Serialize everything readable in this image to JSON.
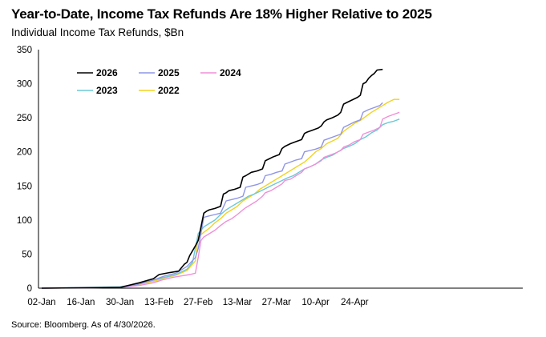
{
  "header": {
    "title": "Year-to-Date, Income Tax Refunds Are 18% Higher Relative to 2025",
    "subtitle": "Individual Income Tax Refunds, $Bn"
  },
  "footer": {
    "source": "Source: Bloomberg. As of 4/30/2026."
  },
  "chart_data": {
    "type": "line",
    "title": "Year-to-Date, Income Tax Refunds Are 18% Higher Relative to 2025",
    "subtitle": "Individual Income Tax Refunds, $Bn",
    "xlabel": "",
    "ylabel": "",
    "x_ticks": [
      "02-Jan",
      "16-Jan",
      "30-Jan",
      "13-Feb",
      "27-Feb",
      "13-Mar",
      "27-Mar",
      "10-Apr",
      "24-Apr"
    ],
    "xlim_days": [
      0,
      120
    ],
    "ylim": [
      0,
      350
    ],
    "y_ticks": [
      0,
      50,
      100,
      150,
      200,
      250,
      300,
      350
    ],
    "grid": false,
    "legend": "top-left",
    "series": [
      {
        "name": "2026",
        "color": "#000000",
        "points": [
          [
            0,
            0
          ],
          [
            28,
            1
          ],
          [
            35,
            8
          ],
          [
            40,
            14
          ],
          [
            42,
            20
          ],
          [
            46,
            23
          ],
          [
            49,
            25
          ],
          [
            51,
            35
          ],
          [
            52,
            38
          ],
          [
            53,
            48
          ],
          [
            54,
            55
          ],
          [
            55,
            62
          ],
          [
            56,
            70
          ],
          [
            58,
            110
          ],
          [
            59,
            113
          ],
          [
            60,
            115
          ],
          [
            62,
            117
          ],
          [
            64,
            120
          ],
          [
            65,
            138
          ],
          [
            66,
            140
          ],
          [
            67,
            143
          ],
          [
            69,
            145
          ],
          [
            71,
            148
          ],
          [
            72,
            163
          ],
          [
            73,
            165
          ],
          [
            75,
            170
          ],
          [
            77,
            172
          ],
          [
            79,
            175
          ],
          [
            80,
            187
          ],
          [
            81,
            189
          ],
          [
            83,
            193
          ],
          [
            85,
            196
          ],
          [
            86,
            205
          ],
          [
            87,
            208
          ],
          [
            89,
            212
          ],
          [
            91,
            215
          ],
          [
            93,
            218
          ],
          [
            94,
            227
          ],
          [
            95,
            229
          ],
          [
            97,
            232
          ],
          [
            99,
            235
          ],
          [
            100,
            238
          ],
          [
            101,
            244
          ],
          [
            102,
            247
          ],
          [
            104,
            250
          ],
          [
            106,
            254
          ],
          [
            107,
            258
          ],
          [
            108,
            270
          ],
          [
            109,
            272
          ],
          [
            111,
            276
          ],
          [
            113,
            280
          ],
          [
            114,
            283
          ],
          [
            115,
            300
          ],
          [
            116,
            302
          ],
          [
            117,
            308
          ],
          [
            118,
            312
          ],
          [
            119,
            315
          ],
          [
            120,
            320
          ],
          [
            122,
            321
          ]
        ]
      },
      {
        "name": "2025",
        "color": "#8f95e6",
        "points": [
          [
            0,
            0
          ],
          [
            28,
            1
          ],
          [
            34,
            5
          ],
          [
            40,
            12
          ],
          [
            44,
            18
          ],
          [
            48,
            22
          ],
          [
            52,
            32
          ],
          [
            55,
            45
          ],
          [
            56,
            58
          ],
          [
            58,
            104
          ],
          [
            60,
            106
          ],
          [
            62,
            108
          ],
          [
            64,
            110
          ],
          [
            66,
            128
          ],
          [
            68,
            130
          ],
          [
            70,
            132
          ],
          [
            72,
            135
          ],
          [
            73,
            148
          ],
          [
            75,
            150
          ],
          [
            77,
            152
          ],
          [
            79,
            155
          ],
          [
            80,
            165
          ],
          [
            82,
            167
          ],
          [
            84,
            170
          ],
          [
            86,
            172
          ],
          [
            87,
            182
          ],
          [
            89,
            185
          ],
          [
            91,
            188
          ],
          [
            93,
            190
          ],
          [
            94,
            200
          ],
          [
            96,
            202
          ],
          [
            98,
            204
          ],
          [
            100,
            207
          ],
          [
            101,
            217
          ],
          [
            103,
            220
          ],
          [
            105,
            223
          ],
          [
            107,
            226
          ],
          [
            108,
            236
          ],
          [
            110,
            240
          ],
          [
            112,
            244
          ],
          [
            114,
            247
          ],
          [
            115,
            258
          ],
          [
            117,
            262
          ],
          [
            119,
            265
          ],
          [
            121,
            268
          ],
          [
            122,
            272
          ]
        ]
      },
      {
        "name": "2024",
        "color": "#ef8fd9",
        "points": [
          [
            0,
            0
          ],
          [
            28,
            1
          ],
          [
            35,
            4
          ],
          [
            40,
            8
          ],
          [
            43,
            12
          ],
          [
            47,
            16
          ],
          [
            50,
            18
          ],
          [
            53,
            20
          ],
          [
            55,
            22
          ],
          [
            56,
            45
          ],
          [
            57,
            70
          ],
          [
            58,
            75
          ],
          [
            60,
            80
          ],
          [
            62,
            85
          ],
          [
            64,
            92
          ],
          [
            66,
            98
          ],
          [
            68,
            102
          ],
          [
            70,
            108
          ],
          [
            72,
            115
          ],
          [
            73,
            118
          ],
          [
            75,
            123
          ],
          [
            77,
            128
          ],
          [
            79,
            135
          ],
          [
            80,
            140
          ],
          [
            82,
            143
          ],
          [
            84,
            148
          ],
          [
            86,
            153
          ],
          [
            87,
            158
          ],
          [
            89,
            160
          ],
          [
            91,
            165
          ],
          [
            93,
            170
          ],
          [
            94,
            175
          ],
          [
            96,
            178
          ],
          [
            98,
            182
          ],
          [
            100,
            187
          ],
          [
            101,
            192
          ],
          [
            103,
            195
          ],
          [
            105,
            198
          ],
          [
            107,
            202
          ],
          [
            108,
            207
          ],
          [
            110,
            210
          ],
          [
            112,
            215
          ],
          [
            114,
            218
          ],
          [
            115,
            226
          ],
          [
            117,
            229
          ],
          [
            119,
            232
          ],
          [
            121,
            236
          ],
          [
            122,
            248
          ],
          [
            124,
            252
          ],
          [
            126,
            255
          ],
          [
            128,
            258
          ]
        ]
      },
      {
        "name": "2023",
        "color": "#6cc8d6",
        "points": [
          [
            0,
            0
          ],
          [
            28,
            2
          ],
          [
            34,
            6
          ],
          [
            40,
            12
          ],
          [
            44,
            16
          ],
          [
            48,
            20
          ],
          [
            52,
            28
          ],
          [
            54,
            38
          ],
          [
            56,
            80
          ],
          [
            58,
            90
          ],
          [
            60,
            95
          ],
          [
            62,
            100
          ],
          [
            64,
            108
          ],
          [
            66,
            115
          ],
          [
            68,
            120
          ],
          [
            70,
            125
          ],
          [
            72,
            130
          ],
          [
            74,
            135
          ],
          [
            76,
            138
          ],
          [
            78,
            142
          ],
          [
            80,
            146
          ],
          [
            82,
            150
          ],
          [
            84,
            154
          ],
          [
            86,
            158
          ],
          [
            88,
            162
          ],
          [
            90,
            165
          ],
          [
            92,
            170
          ],
          [
            94,
            175
          ],
          [
            96,
            178
          ],
          [
            98,
            182
          ],
          [
            100,
            188
          ],
          [
            102,
            192
          ],
          [
            104,
            195
          ],
          [
            106,
            200
          ],
          [
            108,
            205
          ],
          [
            110,
            208
          ],
          [
            112,
            212
          ],
          [
            114,
            218
          ],
          [
            116,
            222
          ],
          [
            118,
            228
          ],
          [
            120,
            232
          ],
          [
            122,
            240
          ],
          [
            124,
            243
          ],
          [
            126,
            245
          ],
          [
            128,
            248
          ]
        ]
      },
      {
        "name": "2022",
        "color": "#f2d21f",
        "points": [
          [
            0,
            0
          ],
          [
            28,
            1
          ],
          [
            34,
            5
          ],
          [
            40,
            10
          ],
          [
            44,
            15
          ],
          [
            48,
            19
          ],
          [
            52,
            26
          ],
          [
            55,
            40
          ],
          [
            56,
            75
          ],
          [
            58,
            82
          ],
          [
            60,
            88
          ],
          [
            62,
            96
          ],
          [
            64,
            102
          ],
          [
            66,
            110
          ],
          [
            68,
            115
          ],
          [
            70,
            120
          ],
          [
            72,
            128
          ],
          [
            74,
            133
          ],
          [
            76,
            138
          ],
          [
            78,
            145
          ],
          [
            80,
            150
          ],
          [
            82,
            155
          ],
          [
            84,
            160
          ],
          [
            86,
            165
          ],
          [
            88,
            170
          ],
          [
            90,
            175
          ],
          [
            92,
            180
          ],
          [
            94,
            185
          ],
          [
            96,
            192
          ],
          [
            98,
            200
          ],
          [
            100,
            205
          ],
          [
            102,
            212
          ],
          [
            104,
            216
          ],
          [
            106,
            220
          ],
          [
            108,
            230
          ],
          [
            110,
            236
          ],
          [
            112,
            242
          ],
          [
            114,
            246
          ],
          [
            116,
            252
          ],
          [
            118,
            258
          ],
          [
            120,
            263
          ],
          [
            122,
            268
          ],
          [
            124,
            273
          ],
          [
            126,
            277
          ],
          [
            128,
            277
          ]
        ]
      }
    ]
  }
}
